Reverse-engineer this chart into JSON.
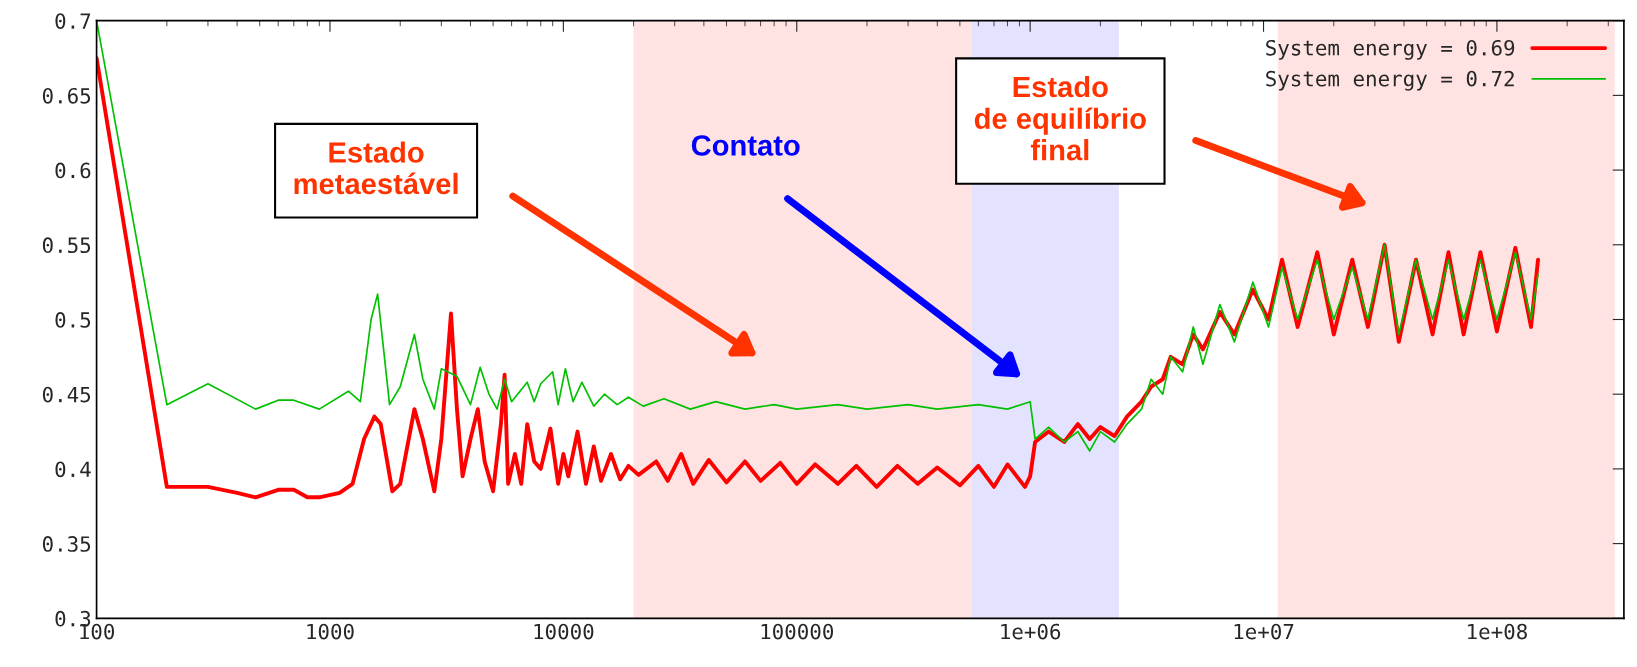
{
  "chart_data": {
    "type": "line",
    "log": "x",
    "grid": false,
    "legend": "top right",
    "marker": "none",
    "line_style": "solid",
    "xlim": [
      100,
      350000000
    ],
    "ylim": [
      0.3,
      0.7
    ],
    "xticks": [
      100,
      1000,
      10000,
      100000,
      {
        "value": 1000000,
        "label": "1e+06"
      },
      {
        "value": 10000000,
        "label": "1e+07"
      },
      {
        "value": 100000000,
        "label": "1e+08"
      }
    ],
    "yticks": [
      0.3,
      0.35,
      0.4,
      0.45,
      0.5,
      0.55,
      0.6,
      0.65,
      0.7
    ],
    "bands": [
      {
        "axis": "x",
        "from": 20000,
        "to": 560000,
        "label": null,
        "color": "#ffcccc"
      },
      {
        "axis": "x",
        "from": 560000,
        "to": 2400000,
        "label": null,
        "color": "#ccccff"
      },
      {
        "axis": "x",
        "from": 11500000,
        "to": 320000000,
        "label": null,
        "color": "#ffcccc"
      }
    ],
    "annotations": [
      "Estado\nmetaestável",
      "Contato",
      "Estado\nde equilíbrio\nfinal"
    ],
    "series": [
      {
        "name": "System energy = 0.69",
        "color": "#ff0000",
        "x": [
          100,
          200,
          300,
          400,
          480,
          600,
          700,
          800,
          900,
          1100,
          1250,
          1400,
          1550,
          1650,
          1850,
          2000,
          2300,
          2500,
          2800,
          3000,
          3300,
          3500,
          3700,
          4000,
          4300,
          4600,
          5000,
          5400,
          5600,
          5800,
          6200,
          6600,
          7000,
          7500,
          8000,
          8800,
          9500,
          10000,
          10500,
          11500,
          12500,
          13500,
          14500,
          16000,
          17500,
          19000,
          21000,
          25000,
          28000,
          32000,
          36000,
          42000,
          50000,
          60000,
          70000,
          85000,
          100000,
          120000,
          150000,
          180000,
          220000,
          270000,
          330000,
          400000,
          500000,
          600000,
          700000,
          800000,
          950000,
          1000000,
          1050000,
          1200000,
          1400000,
          1600000,
          1800000,
          2000000,
          2300000,
          2600000,
          3000000,
          3300000,
          3700000,
          4000000,
          4500000,
          5000000,
          5500000,
          6500000,
          7500000,
          9000000,
          10500000,
          12000000,
          14000000,
          17000000,
          20000000,
          24000000,
          28000000,
          33000000,
          38000000,
          45000000,
          53000000,
          62000000,
          72000000,
          85000000,
          100000000,
          120000000,
          140000000,
          150000000
        ],
        "values": [
          0.675,
          0.388,
          0.388,
          0.384,
          0.381,
          0.386,
          0.386,
          0.381,
          0.381,
          0.384,
          0.39,
          0.42,
          0.435,
          0.43,
          0.385,
          0.39,
          0.44,
          0.42,
          0.385,
          0.42,
          0.504,
          0.44,
          0.395,
          0.42,
          0.44,
          0.405,
          0.385,
          0.43,
          0.463,
          0.39,
          0.41,
          0.39,
          0.43,
          0.405,
          0.4,
          0.427,
          0.39,
          0.41,
          0.395,
          0.425,
          0.39,
          0.415,
          0.392,
          0.41,
          0.393,
          0.402,
          0.396,
          0.405,
          0.392,
          0.41,
          0.39,
          0.406,
          0.391,
          0.405,
          0.392,
          0.404,
          0.39,
          0.403,
          0.39,
          0.402,
          0.388,
          0.402,
          0.39,
          0.401,
          0.389,
          0.402,
          0.388,
          0.403,
          0.388,
          0.395,
          0.418,
          0.425,
          0.418,
          0.43,
          0.42,
          0.428,
          0.422,
          0.435,
          0.445,
          0.455,
          0.46,
          0.475,
          0.47,
          0.49,
          0.48,
          0.505,
          0.49,
          0.52,
          0.5,
          0.54,
          0.495,
          0.545,
          0.49,
          0.54,
          0.495,
          0.55,
          0.485,
          0.54,
          0.49,
          0.545,
          0.49,
          0.545,
          0.492,
          0.548,
          0.495,
          0.54
        ]
      },
      {
        "name": "System energy = 0.72",
        "color": "#00c000",
        "x": [
          100,
          200,
          300,
          480,
          600,
          700,
          900,
          1200,
          1350,
          1500,
          1600,
          1800,
          2000,
          2300,
          2500,
          2800,
          3000,
          3500,
          4000,
          4400,
          4800,
          5200,
          5600,
          6000,
          7000,
          7500,
          8000,
          9000,
          9500,
          10200,
          11000,
          12000,
          13500,
          15000,
          17000,
          19000,
          22000,
          27000,
          35000,
          45000,
          60000,
          80000,
          100000,
          150000,
          200000,
          300000,
          400000,
          600000,
          800000,
          1000000,
          1050000,
          1200000,
          1400000,
          1600000,
          1800000,
          2000000,
          2300000,
          2600000,
          3000000,
          3300000,
          3700000,
          4000000,
          4500000,
          5000000,
          5500000,
          6500000,
          7500000,
          9000000,
          10500000,
          12000000,
          14000000,
          17000000,
          20000000,
          24000000,
          28000000,
          33000000,
          38000000,
          45000000,
          53000000,
          62000000,
          72000000,
          85000000,
          100000000,
          120000000,
          140000000,
          150000000
        ],
        "values": [
          0.7,
          0.443,
          0.457,
          0.44,
          0.446,
          0.446,
          0.44,
          0.452,
          0.445,
          0.5,
          0.517,
          0.443,
          0.455,
          0.49,
          0.46,
          0.44,
          0.467,
          0.462,
          0.443,
          0.468,
          0.45,
          0.44,
          0.46,
          0.445,
          0.458,
          0.445,
          0.457,
          0.465,
          0.443,
          0.467,
          0.445,
          0.458,
          0.442,
          0.45,
          0.443,
          0.448,
          0.442,
          0.447,
          0.44,
          0.445,
          0.44,
          0.443,
          0.44,
          0.443,
          0.44,
          0.443,
          0.44,
          0.443,
          0.44,
          0.445,
          0.42,
          0.428,
          0.418,
          0.425,
          0.412,
          0.425,
          0.418,
          0.43,
          0.44,
          0.46,
          0.45,
          0.475,
          0.465,
          0.495,
          0.47,
          0.51,
          0.485,
          0.525,
          0.495,
          0.535,
          0.5,
          0.54,
          0.5,
          0.535,
          0.5,
          0.55,
          0.49,
          0.54,
          0.5,
          0.54,
          0.5,
          0.54,
          0.5,
          0.545,
          0.5,
          0.53
        ]
      }
    ]
  }
}
